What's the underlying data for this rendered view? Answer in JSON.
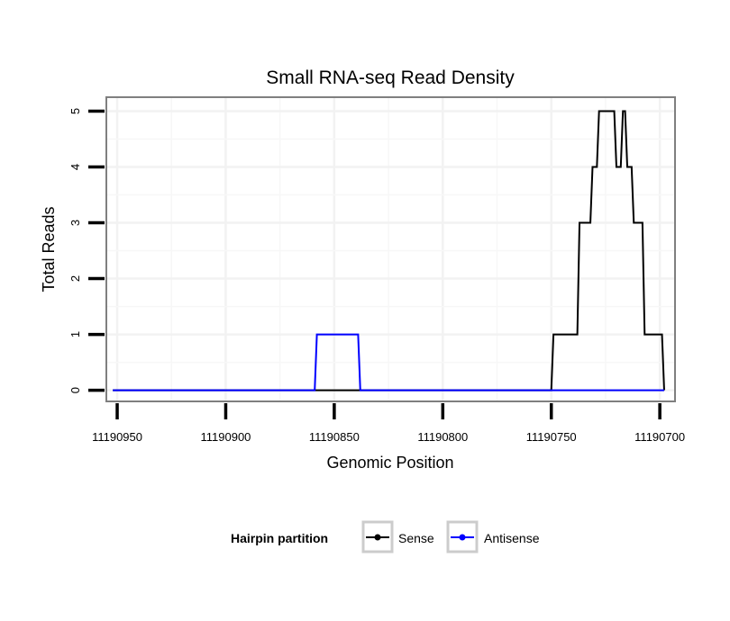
{
  "chart_data": {
    "type": "line",
    "title": "Small RNA-seq Read Density",
    "xlabel": "Genomic Position",
    "ylabel": "Total Reads",
    "x_reversed": true,
    "xlim": [
      11190955,
      11190693
    ],
    "ylim": [
      -0.2,
      5.25
    ],
    "xticks": [
      11190950,
      11190900,
      11190850,
      11190800,
      11190750,
      11190700
    ],
    "xtick_labels": [
      "11190950",
      "11190900",
      "11190850",
      "11190800",
      "11190750",
      "11190700"
    ],
    "yticks": [
      0,
      1,
      2,
      3,
      4,
      5
    ],
    "ytick_labels": [
      "0",
      "1",
      "2",
      "3",
      "4",
      "5"
    ],
    "grid": true,
    "legend": {
      "title": "Hairpin partition",
      "position": "bottom",
      "entries": [
        {
          "name": "Sense",
          "color": "#000000"
        },
        {
          "name": "Antisense",
          "color": "#0000ff"
        }
      ]
    },
    "series": [
      {
        "name": "Sense",
        "color": "#000000",
        "x": [
          11190952,
          11190750,
          11190749,
          11190738,
          11190737,
          11190732,
          11190731,
          11190729,
          11190728,
          11190727,
          11190726,
          11190721,
          11190720,
          11190718,
          11190717,
          11190716,
          11190715,
          11190713,
          11190712,
          11190708,
          11190707,
          11190699,
          11190698
        ],
        "y": [
          0,
          0,
          1,
          1,
          3,
          3,
          4,
          4,
          5,
          5,
          5,
          5,
          4,
          4,
          5,
          5,
          4,
          4,
          3,
          3,
          1,
          1,
          0
        ]
      },
      {
        "name": "Antisense",
        "color": "#0000ff",
        "x": [
          11190952,
          11190859,
          11190858,
          11190839,
          11190838,
          11190698
        ],
        "y": [
          0,
          0,
          1,
          1,
          0,
          0
        ]
      }
    ]
  }
}
